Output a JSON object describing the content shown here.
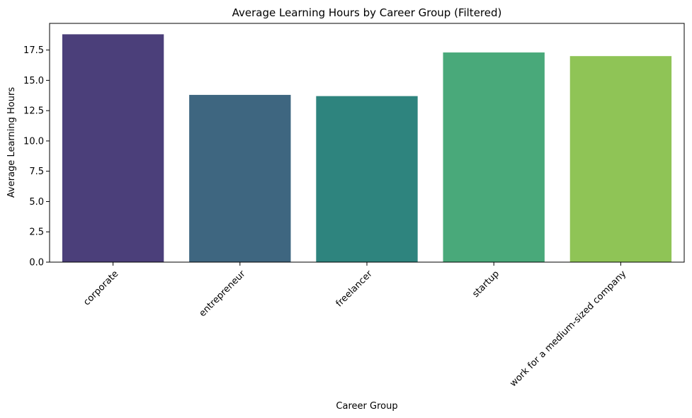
{
  "chart_data": {
    "type": "bar",
    "title": "Average Learning Hours by Career Group (Filtered)",
    "xlabel": "Career Group",
    "ylabel": "Average Learning Hours",
    "categories": [
      "corporate",
      "entrepreneur",
      "freelancer",
      "startup",
      "work for a medium-sized company"
    ],
    "values": [
      18.8,
      13.8,
      13.7,
      17.3,
      17.0
    ],
    "colors": [
      "#4b3f7a",
      "#3e6680",
      "#2e847e",
      "#49a97a",
      "#8fc456"
    ],
    "ylim": [
      0,
      19.7
    ],
    "yticks": [
      0.0,
      2.5,
      5.0,
      7.5,
      10.0,
      12.5,
      15.0,
      17.5
    ],
    "ytick_labels": [
      "0.0",
      "2.5",
      "5.0",
      "7.5",
      "10.0",
      "12.5",
      "15.0",
      "17.5"
    ],
    "grid": false,
    "legend": "none"
  }
}
